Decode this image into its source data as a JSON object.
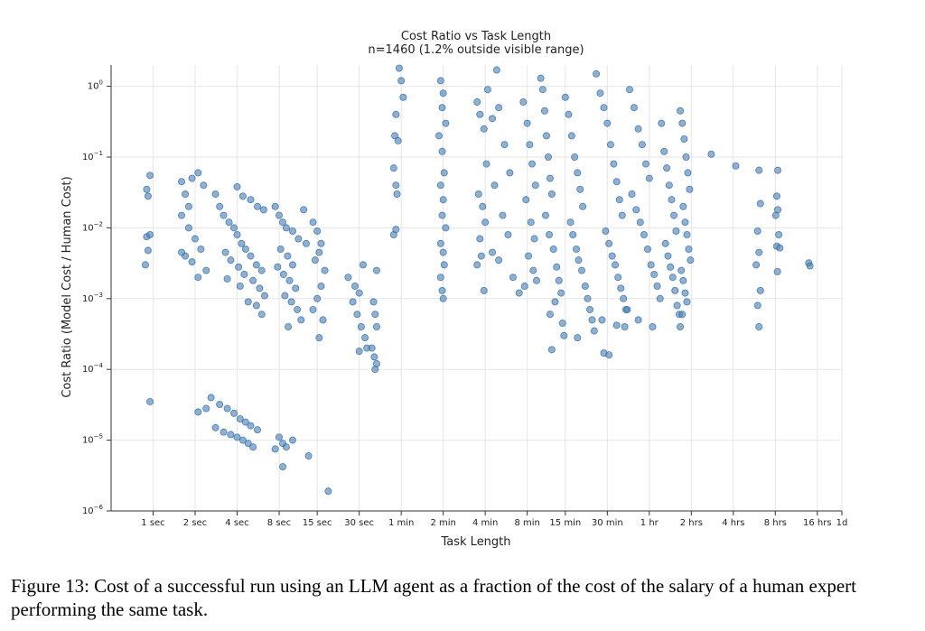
{
  "caption": "Figure 13: Cost of a successful run using an LLM agent as a fraction of the cost of the salary of a human expert performing the same task.",
  "chart_data": {
    "type": "scatter",
    "title": "Cost Ratio vs Task Length",
    "subtitle": "n=1460 (1.2% outside visible range)",
    "xlabel": "Task Length",
    "ylabel": "Cost Ratio (Model Cost / Human Cost)",
    "x_scale": "log2",
    "y_scale": "log10",
    "x_unit": "seconds",
    "xlim": [
      0.5,
      86400
    ],
    "ylim": [
      1e-06,
      2
    ],
    "grid": true,
    "color": "#4a7fb5",
    "x_ticks": [
      {
        "value": 1,
        "label": "1 sec"
      },
      {
        "value": 2,
        "label": "2 sec"
      },
      {
        "value": 4,
        "label": "4 sec"
      },
      {
        "value": 8,
        "label": "8 sec"
      },
      {
        "value": 15,
        "label": "15 sec"
      },
      {
        "value": 30,
        "label": "30 sec"
      },
      {
        "value": 60,
        "label": "1 min"
      },
      {
        "value": 120,
        "label": "2 min"
      },
      {
        "value": 240,
        "label": "4 min"
      },
      {
        "value": 480,
        "label": "8 min"
      },
      {
        "value": 900,
        "label": "15 min"
      },
      {
        "value": 1800,
        "label": "30 min"
      },
      {
        "value": 3600,
        "label": "1 hr"
      },
      {
        "value": 7200,
        "label": "2 hrs"
      },
      {
        "value": 14400,
        "label": "4 hrs"
      },
      {
        "value": 28800,
        "label": "8 hrs"
      },
      {
        "value": 57600,
        "label": "16 hrs"
      },
      {
        "value": 86400,
        "label": "1d"
      }
    ],
    "y_ticks": [
      {
        "value": 1,
        "base": "10",
        "exp": "0"
      },
      {
        "value": 0.1,
        "base": "10",
        "exp": "−1"
      },
      {
        "value": 0.01,
        "base": "10",
        "exp": "−2"
      },
      {
        "value": 0.001,
        "base": "10",
        "exp": "−3"
      },
      {
        "value": 0.0001,
        "base": "10",
        "exp": "−4"
      },
      {
        "value": 1e-05,
        "base": "10",
        "exp": "−5"
      },
      {
        "value": 1e-06,
        "base": "10",
        "exp": "−6"
      }
    ],
    "points": [
      [
        0.9,
        0.035
      ],
      [
        0.92,
        0.028
      ],
      [
        0.95,
        0.055
      ],
      [
        0.9,
        0.0075
      ],
      [
        0.95,
        0.008
      ],
      [
        0.92,
        0.0048
      ],
      [
        0.88,
        0.003
      ],
      [
        0.95,
        3.5e-05
      ],
      [
        1.6,
        0.045
      ],
      [
        1.7,
        0.03
      ],
      [
        1.8,
        0.02
      ],
      [
        1.9,
        0.05
      ],
      [
        2.1,
        0.06
      ],
      [
        2.3,
        0.04
      ],
      [
        1.6,
        0.015
      ],
      [
        1.8,
        0.01
      ],
      [
        2.0,
        0.007
      ],
      [
        2.2,
        0.005
      ],
      [
        1.7,
        0.004
      ],
      [
        1.9,
        0.0033
      ],
      [
        2.4,
        0.0025
      ],
      [
        2.1,
        0.002
      ],
      [
        1.6,
        0.0045
      ],
      [
        2.8,
        0.03
      ],
      [
        3.0,
        0.02
      ],
      [
        3.2,
        0.015
      ],
      [
        3.5,
        0.012
      ],
      [
        3.8,
        0.01
      ],
      [
        4.0,
        0.008
      ],
      [
        4.3,
        0.006
      ],
      [
        4.6,
        0.005
      ],
      [
        5.0,
        0.004
      ],
      [
        5.5,
        0.003
      ],
      [
        6.0,
        0.0025
      ],
      [
        3.3,
        0.0045
      ],
      [
        3.6,
        0.0035
      ],
      [
        4.1,
        0.0028
      ],
      [
        4.5,
        0.0022
      ],
      [
        5.2,
        0.0018
      ],
      [
        5.8,
        0.0014
      ],
      [
        6.3,
        0.0011
      ],
      [
        4.8,
        0.0009
      ],
      [
        5.5,
        0.0008
      ],
      [
        6.0,
        0.0006
      ],
      [
        4.0,
        0.038
      ],
      [
        4.4,
        0.028
      ],
      [
        5.0,
        0.025
      ],
      [
        5.6,
        0.02
      ],
      [
        6.2,
        0.018
      ],
      [
        4.2,
        0.0015
      ],
      [
        3.4,
        0.0019
      ],
      [
        7.5,
        0.02
      ],
      [
        8.0,
        0.015
      ],
      [
        8.5,
        0.012
      ],
      [
        9.0,
        0.01
      ],
      [
        10.0,
        0.009
      ],
      [
        11.0,
        0.007
      ],
      [
        8.2,
        0.005
      ],
      [
        9.2,
        0.004
      ],
      [
        10.0,
        0.003
      ],
      [
        7.8,
        0.0028
      ],
      [
        8.6,
        0.0022
      ],
      [
        9.5,
        0.0018
      ],
      [
        10.5,
        0.0014
      ],
      [
        8.8,
        0.0011
      ],
      [
        9.8,
        0.0009
      ],
      [
        10.8,
        0.0007
      ],
      [
        11.5,
        0.0005
      ],
      [
        9.3,
        0.0004
      ],
      [
        12.0,
        0.018
      ],
      [
        12.5,
        0.006
      ],
      [
        14.0,
        0.012
      ],
      [
        15.0,
        0.009
      ],
      [
        16.0,
        0.006
      ],
      [
        15.5,
        0.0045
      ],
      [
        14.5,
        0.0035
      ],
      [
        17.0,
        0.0025
      ],
      [
        16.0,
        0.0015
      ],
      [
        15.0,
        0.001
      ],
      [
        14.0,
        0.0007
      ],
      [
        16.5,
        0.0005
      ],
      [
        15.5,
        0.00028
      ],
      [
        25.0,
        0.002
      ],
      [
        28.0,
        0.0015
      ],
      [
        30.0,
        0.0012
      ],
      [
        32.0,
        0.003
      ],
      [
        27.0,
        0.0009
      ],
      [
        29.0,
        0.0006
      ],
      [
        31.0,
        0.0004
      ],
      [
        33.0,
        0.00028
      ],
      [
        30.0,
        0.00018
      ],
      [
        34.0,
        0.0002
      ],
      [
        40.0,
        0.0025
      ],
      [
        38.0,
        0.0009
      ],
      [
        39.0,
        0.0006
      ],
      [
        40.0,
        0.0004
      ],
      [
        37.0,
        0.0002
      ],
      [
        38.5,
        0.00015
      ],
      [
        40.0,
        0.00012
      ],
      [
        39.0,
        0.0001
      ],
      [
        2.1,
        2.5e-05
      ],
      [
        2.4,
        2.8e-05
      ],
      [
        2.6,
        4e-05
      ],
      [
        3.0,
        3.2e-05
      ],
      [
        3.4,
        2.8e-05
      ],
      [
        3.8,
        2.4e-05
      ],
      [
        4.2,
        2e-05
      ],
      [
        4.6,
        1.8e-05
      ],
      [
        5.0,
        1.6e-05
      ],
      [
        5.6,
        1.4e-05
      ],
      [
        2.8,
        1.5e-05
      ],
      [
        3.2,
        1.3e-05
      ],
      [
        3.6,
        1.2e-05
      ],
      [
        4.0,
        1.1e-05
      ],
      [
        4.4,
        1e-05
      ],
      [
        4.8,
        9e-06
      ],
      [
        5.2,
        8e-06
      ],
      [
        7.5,
        7.5e-06
      ],
      [
        8.0,
        1.1e-05
      ],
      [
        8.5,
        9e-06
      ],
      [
        9.0,
        8e-06
      ],
      [
        10.0,
        1e-05
      ],
      [
        8.5,
        4.2e-06
      ],
      [
        13.0,
        6e-06
      ],
      [
        18.0,
        1.9e-06
      ],
      [
        58,
        1.8
      ],
      [
        60,
        1.2
      ],
      [
        62,
        0.7
      ],
      [
        55,
        0.4
      ],
      [
        54,
        0.2
      ],
      [
        57,
        0.17
      ],
      [
        53,
        0.07
      ],
      [
        55,
        0.04
      ],
      [
        56,
        0.03
      ],
      [
        53,
        0.008
      ],
      [
        55,
        0.0095
      ],
      [
        115,
        1.2
      ],
      [
        120,
        0.8
      ],
      [
        118,
        0.5
      ],
      [
        125,
        0.3
      ],
      [
        112,
        0.2
      ],
      [
        118,
        0.12
      ],
      [
        122,
        0.06
      ],
      [
        115,
        0.04
      ],
      [
        120,
        0.025
      ],
      [
        118,
        0.015
      ],
      [
        125,
        0.01
      ],
      [
        115,
        0.006
      ],
      [
        120,
        0.0045
      ],
      [
        122,
        0.003
      ],
      [
        115,
        0.002
      ],
      [
        118,
        0.0013
      ],
      [
        120,
        0.001
      ],
      [
        210,
        0.6
      ],
      [
        220,
        0.4
      ],
      [
        235,
        0.25
      ],
      [
        245,
        0.08
      ],
      [
        215,
        0.03
      ],
      [
        230,
        0.02
      ],
      [
        240,
        0.012
      ],
      [
        220,
        0.007
      ],
      [
        225,
        0.004
      ],
      [
        210,
        0.003
      ],
      [
        235,
        0.0013
      ],
      [
        250,
        0.9
      ],
      [
        270,
        0.35
      ],
      [
        300,
        0.5
      ],
      [
        330,
        0.15
      ],
      [
        360,
        0.06
      ],
      [
        280,
        0.04
      ],
      [
        320,
        0.015
      ],
      [
        350,
        0.008
      ],
      [
        300,
        0.0035
      ],
      [
        380,
        0.002
      ],
      [
        270,
        0.0045
      ],
      [
        420,
        0.0012
      ],
      [
        290,
        1.7
      ],
      [
        450,
        0.6
      ],
      [
        480,
        0.3
      ],
      [
        500,
        0.15
      ],
      [
        520,
        0.08
      ],
      [
        550,
        0.04
      ],
      [
        470,
        0.025
      ],
      [
        510,
        0.012
      ],
      [
        540,
        0.007
      ],
      [
        490,
        0.004
      ],
      [
        530,
        0.0025
      ],
      [
        560,
        0.0018
      ],
      [
        460,
        0.0015
      ],
      [
        600,
        1.3
      ],
      [
        620,
        0.9
      ],
      [
        640,
        0.45
      ],
      [
        660,
        0.2
      ],
      [
        680,
        0.1
      ],
      [
        700,
        0.05
      ],
      [
        720,
        0.03
      ],
      [
        650,
        0.015
      ],
      [
        690,
        0.008
      ],
      [
        740,
        0.005
      ],
      [
        780,
        0.0028
      ],
      [
        810,
        0.0018
      ],
      [
        840,
        0.0012
      ],
      [
        760,
        0.0009
      ],
      [
        700,
        0.0006
      ],
      [
        860,
        0.00045
      ],
      [
        880,
        0.0003
      ],
      [
        720,
        0.00019
      ],
      [
        900,
        0.7
      ],
      [
        950,
        0.4
      ],
      [
        1000,
        0.2
      ],
      [
        1050,
        0.1
      ],
      [
        1100,
        0.06
      ],
      [
        1150,
        0.035
      ],
      [
        1200,
        0.02
      ],
      [
        980,
        0.012
      ],
      [
        1020,
        0.008
      ],
      [
        1080,
        0.005
      ],
      [
        1120,
        0.0035
      ],
      [
        1180,
        0.0025
      ],
      [
        1250,
        0.0015
      ],
      [
        1300,
        0.001
      ],
      [
        1350,
        0.0007
      ],
      [
        1400,
        0.0005
      ],
      [
        1450,
        0.00035
      ],
      [
        1100,
        0.00028
      ],
      [
        1500,
        1.5
      ],
      [
        1600,
        0.8
      ],
      [
        1700,
        0.5
      ],
      [
        1800,
        0.3
      ],
      [
        1900,
        0.15
      ],
      [
        2000,
        0.08
      ],
      [
        2100,
        0.045
      ],
      [
        2200,
        0.025
      ],
      [
        2300,
        0.015
      ],
      [
        1750,
        0.009
      ],
      [
        1850,
        0.006
      ],
      [
        1950,
        0.004
      ],
      [
        2050,
        0.003
      ],
      [
        2150,
        0.002
      ],
      [
        2250,
        0.0014
      ],
      [
        2350,
        0.001
      ],
      [
        2450,
        0.0007
      ],
      [
        1650,
        0.0005
      ],
      [
        1700,
        0.00017
      ],
      [
        1850,
        0.00016
      ],
      [
        2400,
        0.0004
      ],
      [
        2100,
        0.00042
      ],
      [
        2600,
        0.9
      ],
      [
        2800,
        0.5
      ],
      [
        3000,
        0.25
      ],
      [
        3200,
        0.15
      ],
      [
        3400,
        0.08
      ],
      [
        3600,
        0.05
      ],
      [
        2700,
        0.03
      ],
      [
        2900,
        0.018
      ],
      [
        3100,
        0.012
      ],
      [
        3300,
        0.008
      ],
      [
        3500,
        0.005
      ],
      [
        3700,
        0.003
      ],
      [
        3900,
        0.0022
      ],
      [
        4100,
        0.0015
      ],
      [
        4300,
        0.001
      ],
      [
        2500,
        0.0007
      ],
      [
        3000,
        0.0005
      ],
      [
        3800,
        0.0004
      ],
      [
        4400,
        0.3
      ],
      [
        4600,
        0.12
      ],
      [
        4800,
        0.07
      ],
      [
        5000,
        0.04
      ],
      [
        5200,
        0.025
      ],
      [
        5400,
        0.015
      ],
      [
        5600,
        0.009
      ],
      [
        4700,
        0.006
      ],
      [
        4900,
        0.004
      ],
      [
        5100,
        0.0028
      ],
      [
        5300,
        0.002
      ],
      [
        5500,
        0.0013
      ],
      [
        5700,
        0.0008
      ],
      [
        5900,
        0.0006
      ],
      [
        6000,
        0.45
      ],
      [
        6200,
        0.3
      ],
      [
        6400,
        0.18
      ],
      [
        6600,
        0.1
      ],
      [
        6800,
        0.06
      ],
      [
        7000,
        0.035
      ],
      [
        6300,
        0.02
      ],
      [
        6500,
        0.012
      ],
      [
        6700,
        0.008
      ],
      [
        6900,
        0.005
      ],
      [
        7100,
        0.0035
      ],
      [
        6100,
        0.0025
      ],
      [
        6300,
        0.0018
      ],
      [
        6500,
        0.0012
      ],
      [
        6700,
        0.0009
      ],
      [
        6200,
        0.0006
      ],
      [
        6000,
        0.0004
      ],
      [
        10000,
        0.11
      ],
      [
        15000,
        0.075
      ],
      [
        22000,
        0.065
      ],
      [
        22500,
        0.022
      ],
      [
        21500,
        0.009
      ],
      [
        22000,
        0.0045
      ],
      [
        21000,
        0.003
      ],
      [
        22500,
        0.0013
      ],
      [
        21500,
        0.0008
      ],
      [
        22000,
        0.0004
      ],
      [
        30000,
        0.065
      ],
      [
        29500,
        0.028
      ],
      [
        30000,
        0.018
      ],
      [
        29000,
        0.015
      ],
      [
        30500,
        0.008
      ],
      [
        29500,
        0.0055
      ],
      [
        31000,
        0.0052
      ],
      [
        29800,
        0.0024
      ],
      [
        50000,
        0.0032
      ],
      [
        51000,
        0.0029
      ]
    ]
  }
}
